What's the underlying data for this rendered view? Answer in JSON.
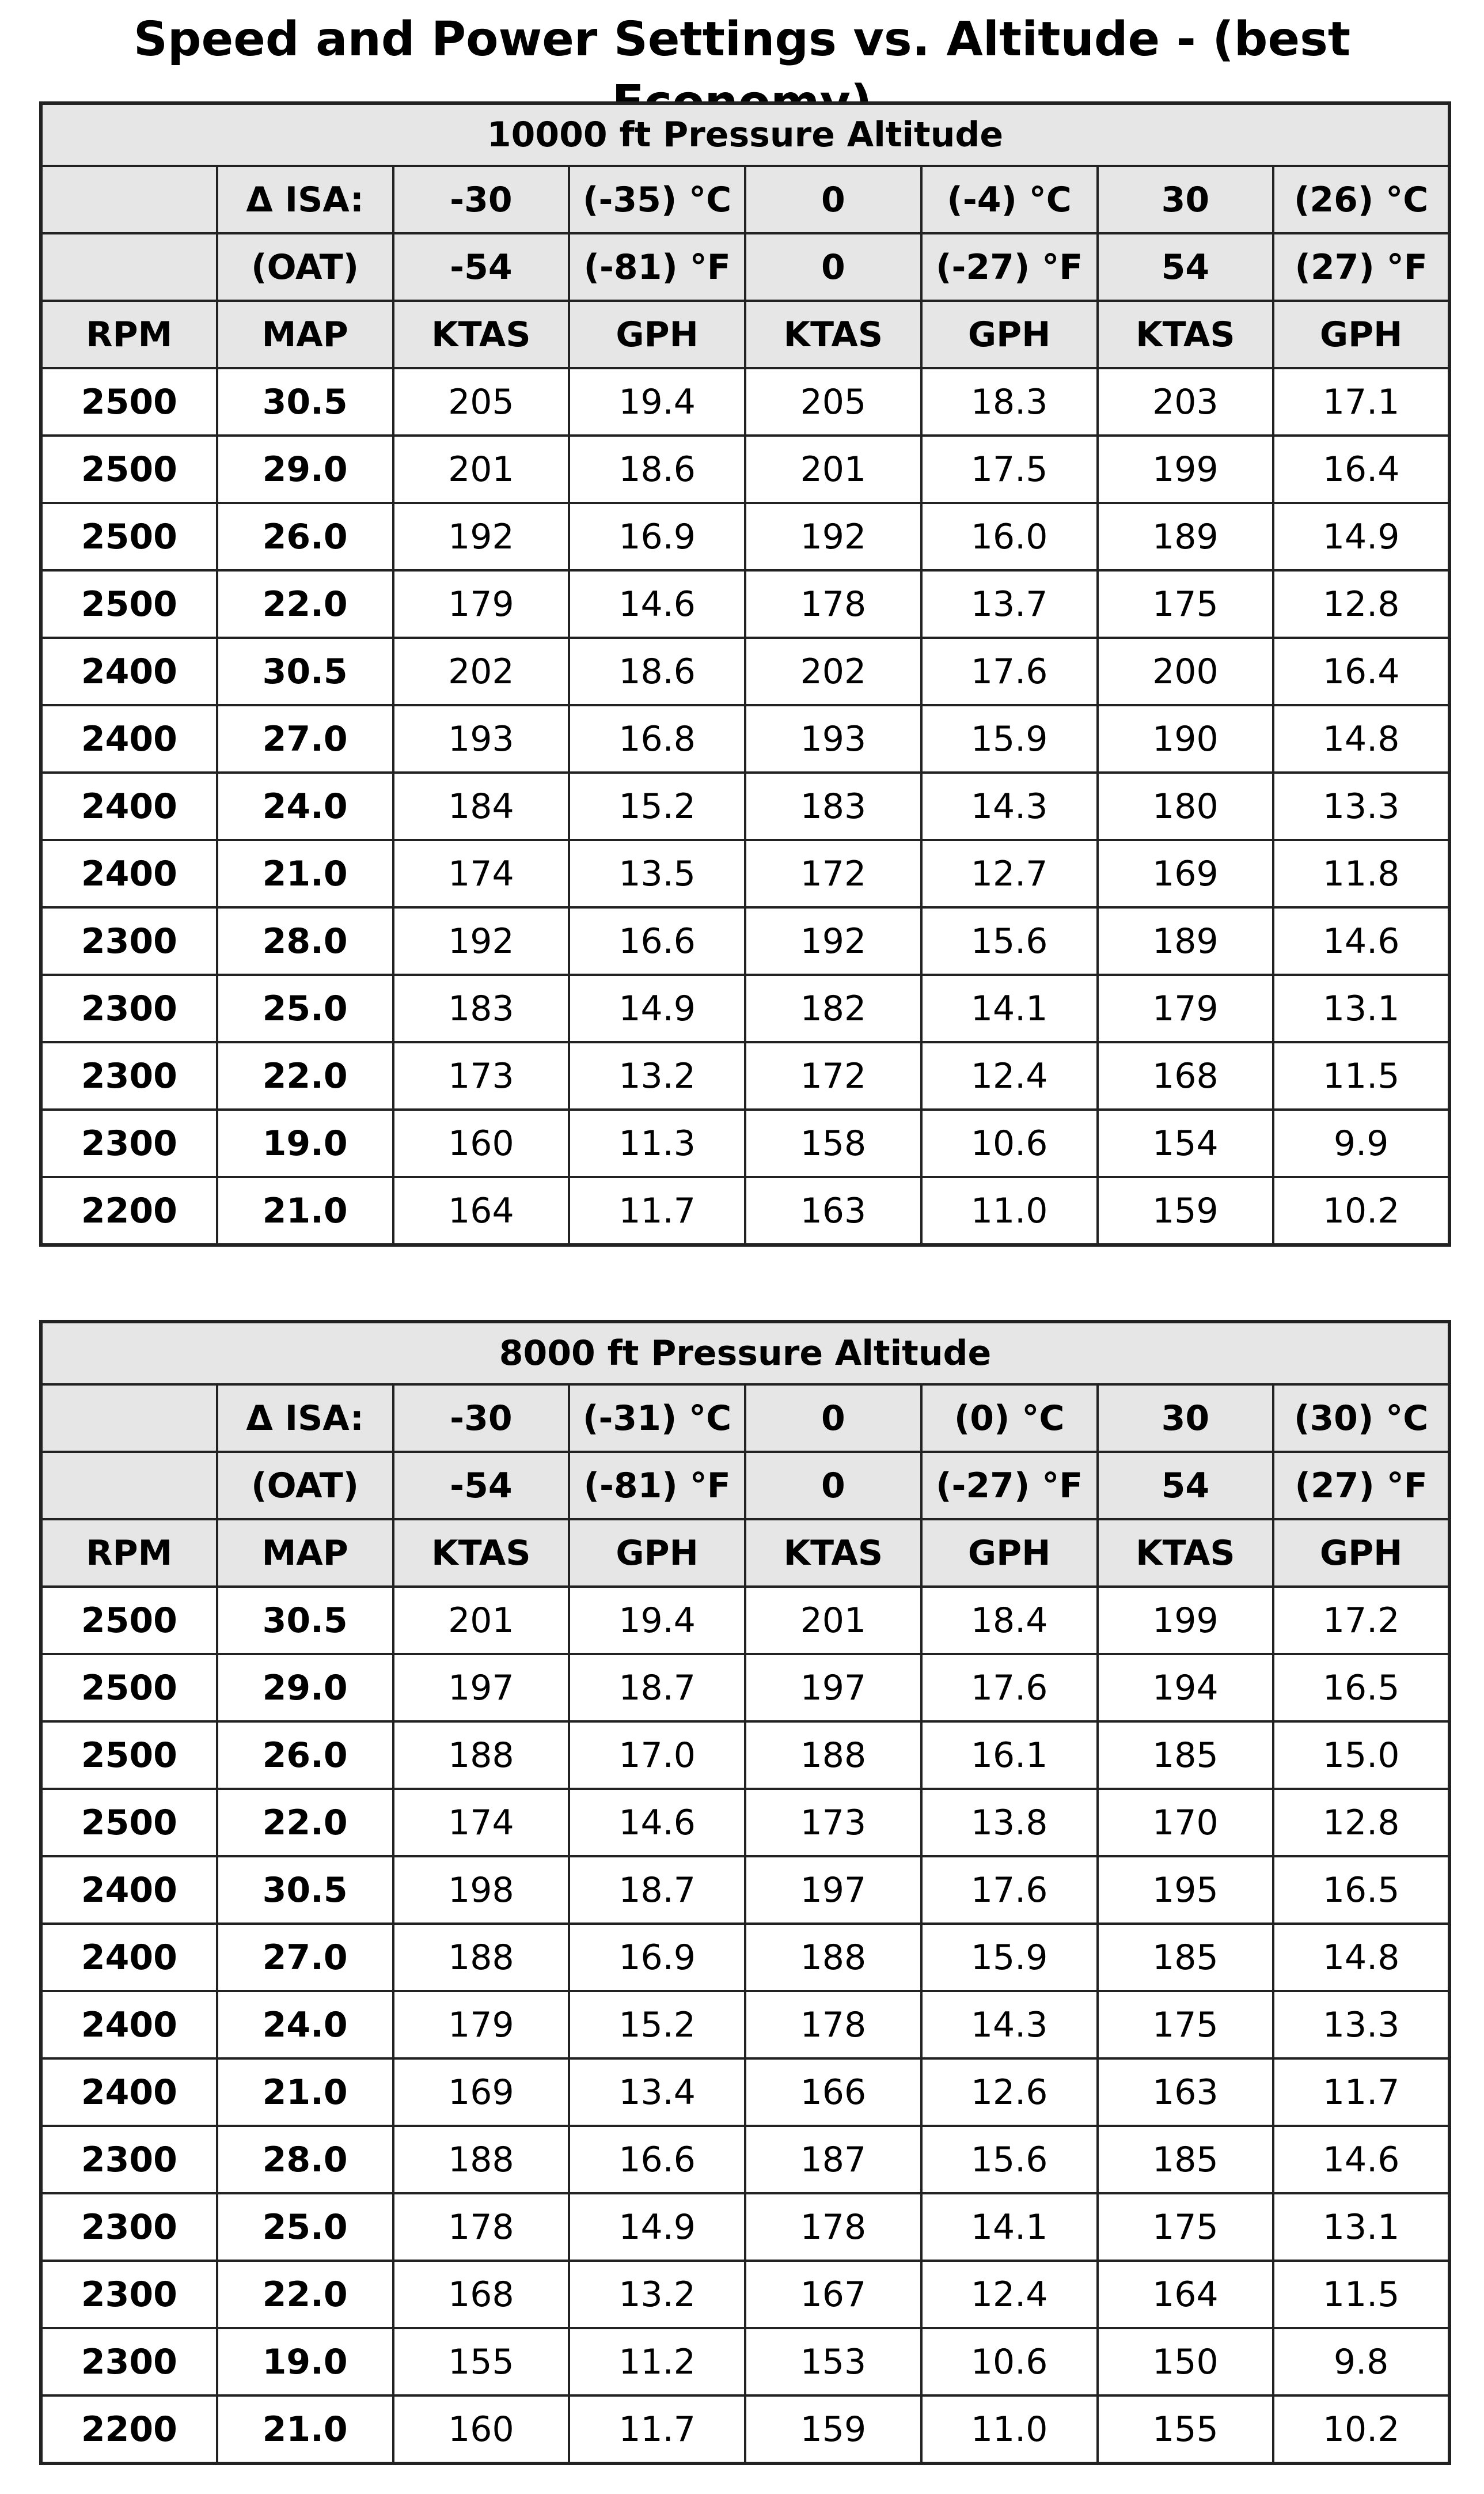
{
  "title": "Speed and Power Settings vs. Altitude - (best Economy)",
  "tables": [
    {
      "caption": "10000 ft Pressure Altitude",
      "isa_row": [
        "",
        "Δ ISA:",
        "-30",
        "(-35) °C",
        "0",
        "(-4) °C",
        "30",
        "(26) °C"
      ],
      "oat_row": [
        "",
        "(OAT)",
        "-54",
        "(-81) °F",
        "0",
        "(-27) °F",
        "54",
        "(27) °F"
      ],
      "column_headers": [
        "RPM",
        "MAP",
        "KTAS",
        "GPH",
        "KTAS",
        "GPH",
        "KTAS",
        "GPH"
      ],
      "rows": [
        [
          "2500",
          "30.5",
          "205",
          "19.4",
          "205",
          "18.3",
          "203",
          "17.1"
        ],
        [
          "2500",
          "29.0",
          "201",
          "18.6",
          "201",
          "17.5",
          "199",
          "16.4"
        ],
        [
          "2500",
          "26.0",
          "192",
          "16.9",
          "192",
          "16.0",
          "189",
          "14.9"
        ],
        [
          "2500",
          "22.0",
          "179",
          "14.6",
          "178",
          "13.7",
          "175",
          "12.8"
        ],
        [
          "2400",
          "30.5",
          "202",
          "18.6",
          "202",
          "17.6",
          "200",
          "16.4"
        ],
        [
          "2400",
          "27.0",
          "193",
          "16.8",
          "193",
          "15.9",
          "190",
          "14.8"
        ],
        [
          "2400",
          "24.0",
          "184",
          "15.2",
          "183",
          "14.3",
          "180",
          "13.3"
        ],
        [
          "2400",
          "21.0",
          "174",
          "13.5",
          "172",
          "12.7",
          "169",
          "11.8"
        ],
        [
          "2300",
          "28.0",
          "192",
          "16.6",
          "192",
          "15.6",
          "189",
          "14.6"
        ],
        [
          "2300",
          "25.0",
          "183",
          "14.9",
          "182",
          "14.1",
          "179",
          "13.1"
        ],
        [
          "2300",
          "22.0",
          "173",
          "13.2",
          "172",
          "12.4",
          "168",
          "11.5"
        ],
        [
          "2300",
          "19.0",
          "160",
          "11.3",
          "158",
          "10.6",
          "154",
          "9.9"
        ],
        [
          "2200",
          "21.0",
          "164",
          "11.7",
          "163",
          "11.0",
          "159",
          "10.2"
        ]
      ]
    },
    {
      "caption": "8000 ft Pressure Altitude",
      "isa_row": [
        "",
        "Δ ISA:",
        "-30",
        "(-31) °C",
        "0",
        "(0) °C",
        "30",
        "(30) °C"
      ],
      "oat_row": [
        "",
        "(OAT)",
        "-54",
        "(-81) °F",
        "0",
        "(-27) °F",
        "54",
        "(27) °F"
      ],
      "column_headers": [
        "RPM",
        "MAP",
        "KTAS",
        "GPH",
        "KTAS",
        "GPH",
        "KTAS",
        "GPH"
      ],
      "rows": [
        [
          "2500",
          "30.5",
          "201",
          "19.4",
          "201",
          "18.4",
          "199",
          "17.2"
        ],
        [
          "2500",
          "29.0",
          "197",
          "18.7",
          "197",
          "17.6",
          "194",
          "16.5"
        ],
        [
          "2500",
          "26.0",
          "188",
          "17.0",
          "188",
          "16.1",
          "185",
          "15.0"
        ],
        [
          "2500",
          "22.0",
          "174",
          "14.6",
          "173",
          "13.8",
          "170",
          "12.8"
        ],
        [
          "2400",
          "30.5",
          "198",
          "18.7",
          "197",
          "17.6",
          "195",
          "16.5"
        ],
        [
          "2400",
          "27.0",
          "188",
          "16.9",
          "188",
          "15.9",
          "185",
          "14.8"
        ],
        [
          "2400",
          "24.0",
          "179",
          "15.2",
          "178",
          "14.3",
          "175",
          "13.3"
        ],
        [
          "2400",
          "21.0",
          "169",
          "13.4",
          "166",
          "12.6",
          "163",
          "11.7"
        ],
        [
          "2300",
          "28.0",
          "188",
          "16.6",
          "187",
          "15.6",
          "185",
          "14.6"
        ],
        [
          "2300",
          "25.0",
          "178",
          "14.9",
          "178",
          "14.1",
          "175",
          "13.1"
        ],
        [
          "2300",
          "22.0",
          "168",
          "13.2",
          "167",
          "12.4",
          "164",
          "11.5"
        ],
        [
          "2300",
          "19.0",
          "155",
          "11.2",
          "153",
          "10.6",
          "150",
          "9.8"
        ],
        [
          "2200",
          "21.0",
          "160",
          "11.7",
          "159",
          "11.0",
          "155",
          "10.2"
        ]
      ]
    }
  ]
}
